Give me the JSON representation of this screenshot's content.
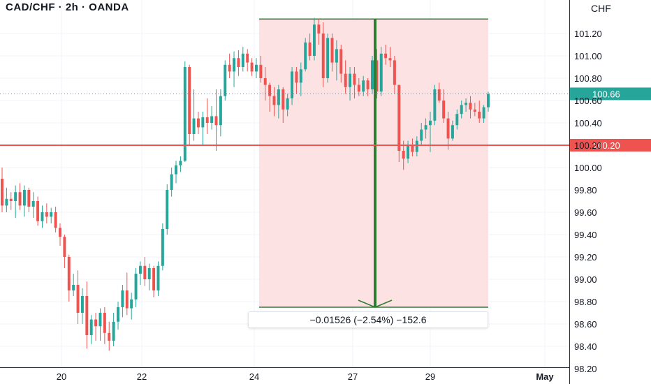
{
  "header": {
    "title": "CAD/CHF · 2h · OANDA",
    "currency": "CHF"
  },
  "colors": {
    "up": "#26a69a",
    "down": "#ef5350",
    "measure_fill": "#fde2e4",
    "measure_line": "#2e7d32",
    "hline": "#ef5350",
    "current": "#26a69a"
  },
  "chart_data": {
    "type": "candlestick",
    "ylim": [
      98.2,
      101.45
    ],
    "y_ticks": [
      "98.20",
      "98.40",
      "98.60",
      "98.80",
      "99.00",
      "99.20",
      "99.40",
      "99.60",
      "99.80",
      "100.00",
      "100.20",
      "100.40",
      "100.60",
      "100.80",
      "101.00",
      "101.20"
    ],
    "x_ticks": [
      "20",
      "22",
      "24",
      "27",
      "29",
      "May"
    ],
    "current_price": {
      "label": "100.66",
      "value": 100.66
    },
    "horizontal_line": {
      "label": "100.20",
      "value": 100.2
    },
    "measure": {
      "top": 101.33,
      "bottom": 98.75,
      "label": "−0.01526 (−2.54%) −152.6"
    },
    "candles": [
      [
        99.9,
        100.0,
        99.6,
        99.66
      ],
      [
        99.66,
        99.82,
        99.6,
        99.72
      ],
      [
        99.72,
        99.78,
        99.62,
        99.7
      ],
      [
        99.7,
        99.84,
        99.55,
        99.78
      ],
      [
        99.78,
        99.86,
        99.62,
        99.66
      ],
      [
        99.66,
        99.84,
        99.56,
        99.8
      ],
      [
        99.8,
        99.82,
        99.6,
        99.65
      ],
      [
        99.65,
        99.78,
        99.55,
        99.7
      ],
      [
        99.7,
        99.74,
        99.48,
        99.52
      ],
      [
        99.52,
        99.66,
        99.46,
        99.6
      ],
      [
        99.6,
        99.68,
        99.5,
        99.56
      ],
      [
        99.56,
        99.64,
        99.5,
        99.6
      ],
      [
        99.6,
        99.65,
        99.42,
        99.46
      ],
      [
        99.46,
        99.5,
        99.3,
        99.38
      ],
      [
        99.38,
        99.4,
        99.1,
        99.2
      ],
      [
        99.2,
        99.22,
        98.8,
        98.9
      ],
      [
        98.9,
        99.05,
        98.85,
        98.95
      ],
      [
        98.95,
        99.08,
        98.6,
        98.7
      ],
      [
        98.7,
        98.92,
        98.6,
        98.85
      ],
      [
        98.85,
        98.98,
        98.38,
        98.5
      ],
      [
        98.5,
        98.68,
        98.42,
        98.64
      ],
      [
        98.64,
        98.7,
        98.45,
        98.58
      ],
      [
        98.58,
        98.74,
        98.45,
        98.7
      ],
      [
        98.7,
        98.75,
        98.42,
        98.52
      ],
      [
        98.52,
        98.62,
        98.36,
        98.45
      ],
      [
        98.45,
        98.7,
        98.4,
        98.62
      ],
      [
        98.62,
        98.8,
        98.55,
        98.75
      ],
      [
        98.75,
        98.95,
        98.66,
        98.9
      ],
      [
        98.9,
        99.06,
        98.68,
        98.74
      ],
      [
        98.74,
        98.88,
        98.64,
        98.82
      ],
      [
        98.82,
        99.1,
        98.75,
        99.05
      ],
      [
        99.05,
        99.16,
        98.95,
        99.12
      ],
      [
        99.12,
        99.2,
        98.94,
        99.0
      ],
      [
        99.0,
        99.14,
        98.9,
        99.1
      ],
      [
        99.1,
        99.12,
        98.84,
        98.9
      ],
      [
        98.9,
        99.16,
        98.85,
        99.12
      ],
      [
        99.12,
        99.5,
        99.08,
        99.45
      ],
      [
        99.45,
        99.85,
        99.4,
        99.8
      ],
      [
        99.8,
        100.0,
        99.74,
        99.94
      ],
      [
        99.94,
        100.06,
        99.86,
        100.02
      ],
      [
        100.02,
        100.1,
        99.96,
        100.06
      ],
      [
        100.06,
        100.95,
        100.05,
        100.9
      ],
      [
        100.9,
        100.92,
        100.2,
        100.3
      ],
      [
        100.3,
        100.7,
        100.24,
        100.44
      ],
      [
        100.44,
        100.5,
        100.3,
        100.36
      ],
      [
        100.36,
        100.5,
        100.2,
        100.45
      ],
      [
        100.45,
        100.62,
        100.3,
        100.4
      ],
      [
        100.4,
        100.55,
        100.34,
        100.46
      ],
      [
        100.46,
        100.7,
        100.15,
        100.38
      ],
      [
        100.38,
        100.7,
        100.28,
        100.64
      ],
      [
        100.64,
        100.96,
        100.6,
        100.92
      ],
      [
        100.92,
        101.02,
        100.8,
        100.86
      ],
      [
        100.86,
        101.04,
        100.72,
        100.98
      ],
      [
        100.98,
        101.05,
        100.82,
        100.9
      ],
      [
        100.9,
        101.08,
        100.86,
        101.02
      ],
      [
        101.02,
        101.06,
        100.86,
        100.94
      ],
      [
        100.94,
        100.98,
        100.82,
        100.86
      ],
      [
        100.86,
        100.98,
        100.8,
        100.92
      ],
      [
        100.92,
        101.0,
        100.76,
        100.8
      ],
      [
        100.8,
        100.9,
        100.6,
        100.74
      ],
      [
        100.74,
        100.76,
        100.5,
        100.64
      ],
      [
        100.64,
        100.72,
        100.46,
        100.56
      ],
      [
        100.56,
        100.74,
        100.44,
        100.7
      ],
      [
        100.7,
        100.72,
        100.4,
        100.52
      ],
      [
        100.52,
        100.66,
        100.46,
        100.62
      ],
      [
        100.62,
        100.9,
        100.56,
        100.86
      ],
      [
        100.86,
        100.9,
        100.66,
        100.76
      ],
      [
        100.76,
        100.94,
        100.64,
        100.88
      ],
      [
        100.88,
        101.16,
        100.86,
        101.12
      ],
      [
        101.12,
        101.2,
        100.96,
        101.0
      ],
      [
        101.0,
        101.34,
        100.96,
        101.28
      ],
      [
        101.28,
        101.33,
        101.1,
        101.2
      ],
      [
        101.2,
        101.3,
        100.72,
        100.8
      ],
      [
        100.8,
        101.2,
        100.76,
        101.16
      ],
      [
        101.16,
        101.2,
        100.86,
        100.94
      ],
      [
        100.94,
        101.14,
        100.78,
        101.06
      ],
      [
        101.06,
        101.1,
        100.76,
        100.84
      ],
      [
        100.84,
        100.96,
        100.66,
        100.72
      ],
      [
        100.72,
        100.9,
        100.6,
        100.84
      ],
      [
        100.84,
        100.9,
        100.62,
        100.74
      ],
      [
        100.74,
        100.8,
        100.64,
        100.68
      ],
      [
        100.68,
        100.82,
        100.64,
        100.78
      ],
      [
        100.78,
        100.8,
        100.64,
        100.7
      ],
      [
        100.7,
        101.0,
        100.66,
        100.96
      ],
      [
        100.96,
        101.06,
        100.62,
        100.68
      ],
      [
        100.68,
        101.08,
        100.64,
        101.02
      ],
      [
        101.02,
        101.1,
        100.92,
        100.98
      ],
      [
        100.98,
        101.08,
        100.9,
        100.96
      ],
      [
        100.96,
        101.0,
        100.66,
        100.74
      ],
      [
        100.74,
        100.74,
        100.05,
        100.15
      ],
      [
        100.15,
        100.24,
        99.98,
        100.08
      ],
      [
        100.08,
        100.24,
        100.04,
        100.2
      ],
      [
        100.2,
        100.26,
        100.1,
        100.14
      ],
      [
        100.14,
        100.28,
        100.1,
        100.24
      ],
      [
        100.24,
        100.4,
        100.2,
        100.34
      ],
      [
        100.34,
        100.44,
        100.26,
        100.38
      ],
      [
        100.38,
        100.5,
        100.14,
        100.42
      ],
      [
        100.42,
        100.74,
        100.38,
        100.7
      ],
      [
        100.7,
        100.76,
        100.58,
        100.6
      ],
      [
        100.6,
        100.7,
        100.4,
        100.44
      ],
      [
        100.44,
        100.5,
        100.16,
        100.26
      ],
      [
        100.26,
        100.42,
        100.24,
        100.38
      ],
      [
        100.38,
        100.52,
        100.34,
        100.48
      ],
      [
        100.48,
        100.6,
        100.44,
        100.56
      ],
      [
        100.56,
        100.62,
        100.5,
        100.58
      ],
      [
        100.58,
        100.64,
        100.44,
        100.52
      ],
      [
        100.52,
        100.58,
        100.46,
        100.5
      ],
      [
        100.5,
        100.6,
        100.4,
        100.44
      ],
      [
        100.44,
        100.56,
        100.4,
        100.54
      ],
      [
        100.54,
        100.68,
        100.5,
        100.66
      ]
    ]
  }
}
